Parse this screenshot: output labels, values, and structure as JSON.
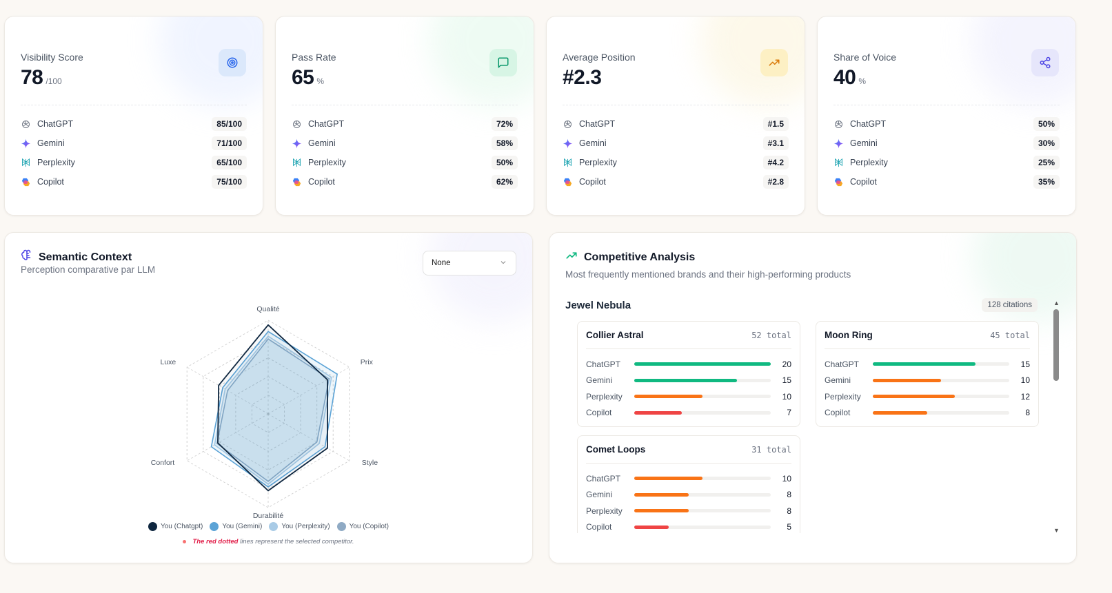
{
  "metrics": [
    {
      "title": "Visibility Score",
      "value": "78",
      "suffix": "/100",
      "icon": "target-icon",
      "icon_bg": "#dbe8fb",
      "icon_color": "#2563eb",
      "glow": "#e4ecff",
      "rows": [
        {
          "name": "ChatGPT",
          "value": "85/100"
        },
        {
          "name": "Gemini",
          "value": "71/100"
        },
        {
          "name": "Perplexity",
          "value": "65/100"
        },
        {
          "name": "Copilot",
          "value": "75/100"
        }
      ]
    },
    {
      "title": "Pass Rate",
      "value": "65",
      "suffix": "%",
      "icon": "message-square-icon",
      "icon_bg": "#d7f5e5",
      "icon_color": "#059669",
      "glow": "#e1f8ea",
      "rows": [
        {
          "name": "ChatGPT",
          "value": "72%"
        },
        {
          "name": "Gemini",
          "value": "58%"
        },
        {
          "name": "Perplexity",
          "value": "50%"
        },
        {
          "name": "Copilot",
          "value": "62%"
        }
      ]
    },
    {
      "title": "Average Position",
      "value": "#2.3",
      "suffix": "",
      "icon": "trending-up-icon",
      "icon_bg": "#fdf0c4",
      "icon_color": "#d97706",
      "glow": "#fbf3d9",
      "rows": [
        {
          "name": "ChatGPT",
          "value": "#1.5"
        },
        {
          "name": "Gemini",
          "value": "#3.1"
        },
        {
          "name": "Perplexity",
          "value": "#4.2"
        },
        {
          "name": "Copilot",
          "value": "#2.8"
        }
      ]
    },
    {
      "title": "Share of Voice",
      "value": "40",
      "suffix": "%",
      "icon": "share-icon",
      "icon_bg": "#e6e6fb",
      "icon_color": "#4f46e5",
      "glow": "#ebebfc",
      "rows": [
        {
          "name": "ChatGPT",
          "value": "50%"
        },
        {
          "name": "Gemini",
          "value": "30%"
        },
        {
          "name": "Perplexity",
          "value": "25%"
        },
        {
          "name": "Copilot",
          "value": "35%"
        }
      ]
    }
  ],
  "semantic": {
    "title": "Semantic Context",
    "subtitle": "Perception comparative par LLM",
    "select_value": "None",
    "axes": [
      "Qualité",
      "Prix",
      "Style",
      "Durabilité",
      "Confort",
      "Luxe"
    ],
    "series": [
      {
        "name": "You (Chatgpt)",
        "color": "#0f2740",
        "values": [
          0.95,
          0.73,
          0.73,
          0.82,
          0.62,
          0.61
        ]
      },
      {
        "name": "You (Gemini)",
        "color": "#5ba3d6",
        "values": [
          0.88,
          0.85,
          0.7,
          0.78,
          0.7,
          0.56
        ]
      },
      {
        "name": "You (Perplexity)",
        "color": "#a9cbe6",
        "values": [
          0.83,
          0.78,
          0.63,
          0.75,
          0.66,
          0.53
        ]
      },
      {
        "name": "You (Copilot)",
        "color": "#8faac4",
        "values": [
          0.8,
          0.75,
          0.6,
          0.72,
          0.63,
          0.5
        ]
      }
    ],
    "note_red": "The red dotted",
    "note_rest": "lines represent the selected competitor."
  },
  "competitive": {
    "title": "Competitive Analysis",
    "subtitle": "Most frequently mentioned brands and their high-performing products",
    "brand": "Jewel Nebula",
    "citations": "128 citations",
    "colors": {
      "high": "#10b981",
      "mid": "#f97316",
      "low": "#ef4444"
    },
    "products": [
      {
        "name": "Collier Astral",
        "total": "52 total",
        "rows": [
          {
            "name": "ChatGPT",
            "value": 20,
            "level": "high"
          },
          {
            "name": "Gemini",
            "value": 15,
            "level": "high"
          },
          {
            "name": "Perplexity",
            "value": 10,
            "level": "mid"
          },
          {
            "name": "Copilot",
            "value": 7,
            "level": "low"
          }
        ]
      },
      {
        "name": "Moon Ring",
        "total": "45 total",
        "rows": [
          {
            "name": "ChatGPT",
            "value": 15,
            "level": "high"
          },
          {
            "name": "Gemini",
            "value": 10,
            "level": "mid"
          },
          {
            "name": "Perplexity",
            "value": 12,
            "level": "mid"
          },
          {
            "name": "Copilot",
            "value": 8,
            "level": "mid"
          }
        ]
      },
      {
        "name": "Comet Loops",
        "total": "31 total",
        "rows": [
          {
            "name": "ChatGPT",
            "value": 10,
            "level": "mid"
          },
          {
            "name": "Gemini",
            "value": 8,
            "level": "mid"
          },
          {
            "name": "Perplexity",
            "value": 8,
            "level": "mid"
          },
          {
            "name": "Copilot",
            "value": 5,
            "level": "low"
          }
        ]
      }
    ]
  }
}
